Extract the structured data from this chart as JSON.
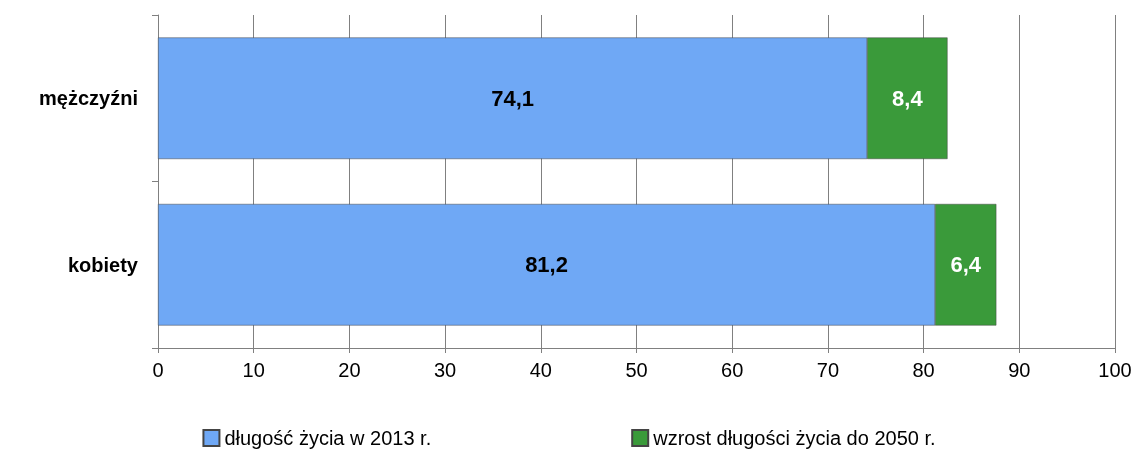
{
  "chart_data": {
    "type": "bar",
    "orientation": "horizontal",
    "stacked": true,
    "categories": [
      "mężczyźni",
      "kobiety"
    ],
    "series": [
      {
        "name": "długość życia w 2013 r.",
        "color": "#6fa8f5",
        "values": [
          74.1,
          81.2
        ],
        "value_labels": [
          "74,1",
          "81,2"
        ]
      },
      {
        "name": "wzrost długości życia do 2050 r.",
        "color": "#3a9a3a",
        "values": [
          8.4,
          6.4
        ],
        "value_labels": [
          "8,4",
          "6,4"
        ]
      }
    ],
    "xlim": [
      0,
      100
    ],
    "xticks": [
      0,
      10,
      20,
      30,
      40,
      50,
      60,
      70,
      80,
      90,
      100
    ],
    "grid": "x",
    "legend": "bottom"
  }
}
